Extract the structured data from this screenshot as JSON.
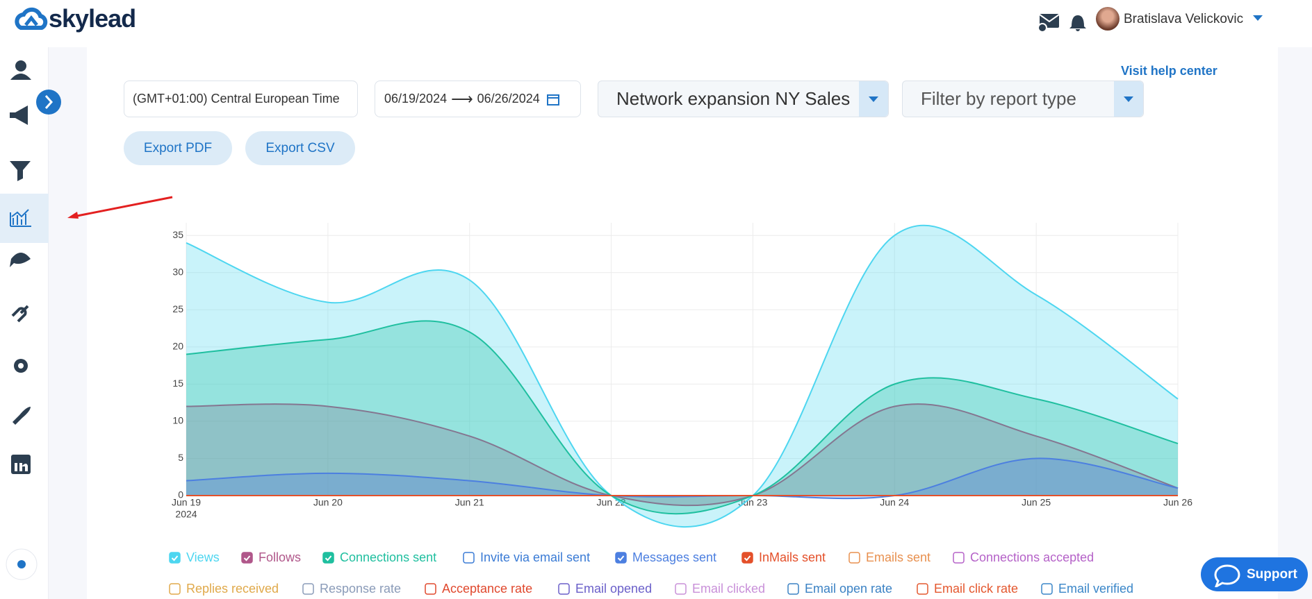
{
  "header": {
    "brand": "skylead",
    "user_name": "Bratislava Velickovic"
  },
  "help_link": "Visit help center",
  "controls": {
    "timezone": "(GMT+01:00) Central European Time",
    "date_start": "06/19/2024",
    "date_end": "06/26/2024",
    "campaign": "Network expansion NY Sales",
    "report_filter": "Filter by report type",
    "export_pdf": "Export PDF",
    "export_csv": "Export CSV"
  },
  "support": "Support",
  "chart_data": {
    "type": "area",
    "categories": [
      "Jun 19",
      "Jun 20",
      "Jun 21",
      "Jun 22",
      "Jun 23",
      "Jun 24",
      "Jun 25",
      "Jun 26"
    ],
    "x_year": "2024",
    "ylim": [
      0,
      36.7
    ],
    "yticks": [
      0,
      5,
      10,
      15,
      20,
      25,
      30,
      35
    ],
    "grid": true,
    "series": [
      {
        "name": "Views",
        "color": "#4dd6f0",
        "checked": true,
        "values": [
          34,
          26,
          29,
          0,
          0,
          35,
          27,
          13
        ]
      },
      {
        "name": "Follows",
        "color": "#b0578a",
        "checked": true,
        "values": [
          12,
          12,
          8,
          0,
          0,
          12,
          8,
          1
        ]
      },
      {
        "name": "Connections sent",
        "color": "#1fbf9f",
        "checked": true,
        "values": [
          19,
          21,
          22,
          0,
          0,
          15,
          13,
          7
        ]
      },
      {
        "name": "Invite via email sent",
        "color": "#3a7bd5",
        "checked": false
      },
      {
        "name": "Messages sent",
        "color": "#4c7fe0",
        "checked": true,
        "values": [
          2,
          3,
          2,
          0,
          0,
          0,
          5,
          1
        ]
      },
      {
        "name": "InMails sent",
        "color": "#e4502a",
        "checked": true,
        "values": [
          0,
          0,
          0,
          0,
          0,
          0,
          0,
          0
        ]
      },
      {
        "name": "Emails sent",
        "color": "#e8904f",
        "checked": false
      },
      {
        "name": "Connections accepted",
        "color": "#b562c8",
        "checked": false
      },
      {
        "name": "Replies received",
        "color": "#e0a94a",
        "checked": false
      },
      {
        "name": "Response rate",
        "color": "#8a9bb8",
        "checked": false
      },
      {
        "name": "Acceptance rate",
        "color": "#e0482d",
        "checked": false
      },
      {
        "name": "Email opened",
        "color": "#6a5fc9",
        "checked": false
      },
      {
        "name": "Email clicked",
        "color": "#c990d9",
        "checked": false
      },
      {
        "name": "Email open rate",
        "color": "#3b82c4",
        "checked": false
      },
      {
        "name": "Email click rate",
        "color": "#e4582f",
        "checked": false
      },
      {
        "name": "Email verified",
        "color": "#3a86c8",
        "checked": false
      }
    ]
  }
}
